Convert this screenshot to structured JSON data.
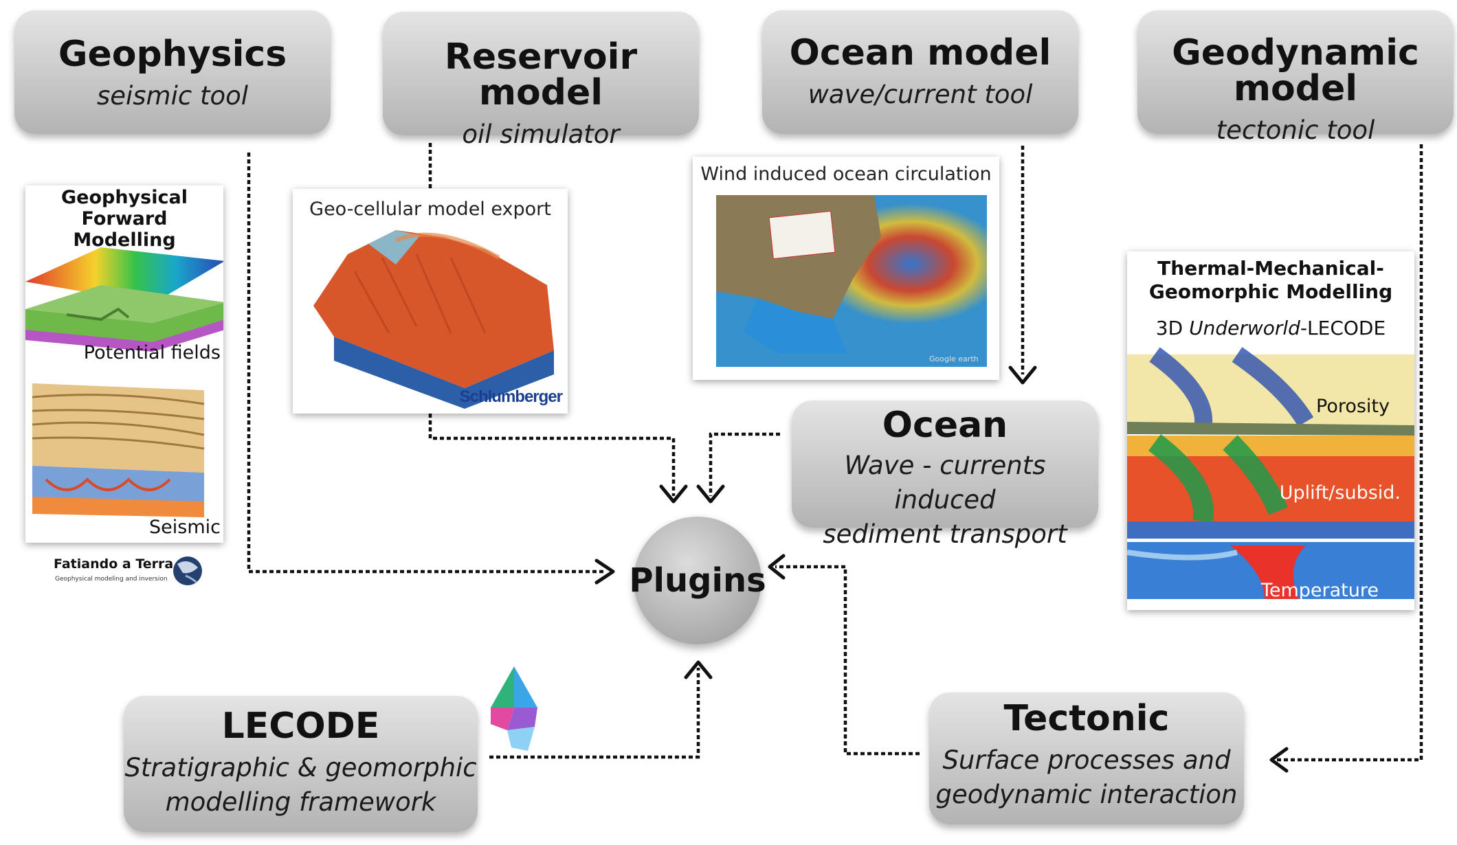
{
  "top_boxes": {
    "geophysics": {
      "title": "Geophysics",
      "subtitle": "seismic tool"
    },
    "reservoir": {
      "title": "Reservoir model",
      "subtitle": "oil simulator"
    },
    "ocean_model": {
      "title": "Ocean model",
      "subtitle": "wave/current tool"
    },
    "geodynamic": {
      "title": "Geodynamic model",
      "subtitle": "tectonic tool"
    }
  },
  "plugin_boxes": {
    "ocean": {
      "title": "Ocean",
      "line1": "Wave - currents induced",
      "line2": "sediment transport"
    },
    "lecode": {
      "title": "LECODE",
      "line1": "Stratigraphic & geomorphic",
      "line2": "modelling framework"
    },
    "tectonic": {
      "title": "Tectonic",
      "line1": "Surface processes and",
      "line2": "geodynamic interaction"
    }
  },
  "hub": {
    "label": "Plugins"
  },
  "panels": {
    "geophysics": {
      "title_line1": "Geophysical Forward",
      "title_line2": "Modelling",
      "label_top": "Potential fields",
      "label_bottom": "Seismic",
      "logo_text": "Fatiando a Terra",
      "logo_subtext": "Geophysical modeling and inversion"
    },
    "reservoir": {
      "title": "Geo-cellular model export",
      "logo": "Schlumberger"
    },
    "ocean": {
      "title": "Wind induced ocean circulation",
      "watermark": "Google earth"
    },
    "geodynamic": {
      "title_line1": "Thermal-Mechanical-",
      "title_line2": "Geomorphic Modelling",
      "subtitle_prefix": "3D ",
      "subtitle_italic": "Underworld",
      "subtitle_suffix": "-LECODE",
      "layer1": "Porosity",
      "layer2": "Uplift/subsid.",
      "layer3": "Temperature"
    }
  },
  "colors": {
    "box_fill_top": "#e4e4e4",
    "box_fill_bottom": "#b3b3b3",
    "connector": "#111111",
    "schlumberger_blue": "#1a3f8f"
  }
}
